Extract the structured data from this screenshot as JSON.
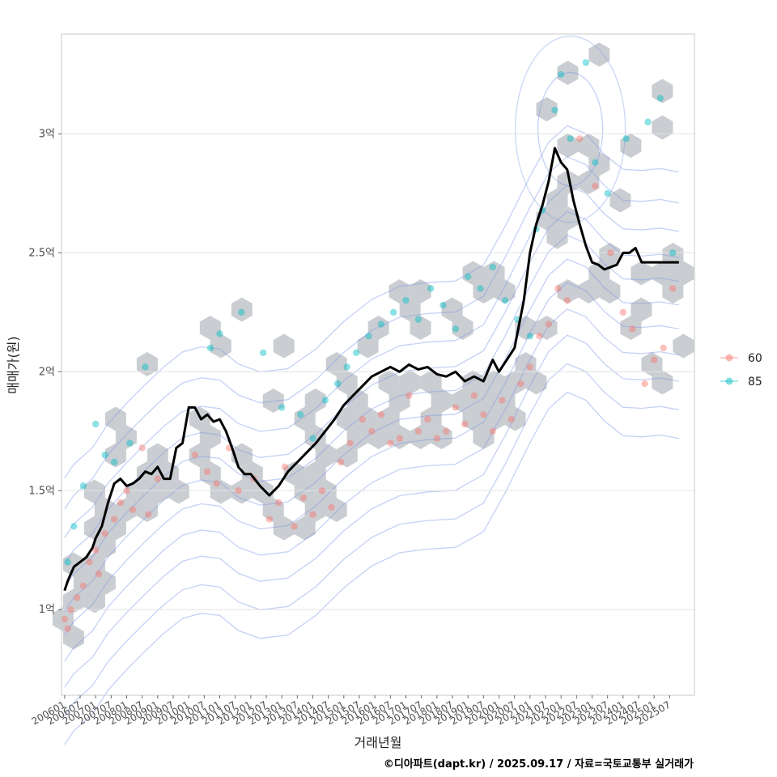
{
  "chart_data": {
    "type": "scatter",
    "title": "",
    "xlabel": "거래년월",
    "ylabel": "매매가(원)",
    "caption": "©디아파트(dapt.kr) / 2025.09.17 / 자료=국토교통부 실거래가",
    "x_range": [
      2005.9,
      2026.3
    ],
    "ylim": [
      0.64,
      3.42
    ],
    "y_ticks": [
      {
        "value": 1.0,
        "label": "1억"
      },
      {
        "value": 1.5,
        "label": "1.5억"
      },
      {
        "value": 2.0,
        "label": "2억"
      },
      {
        "value": 2.5,
        "label": "2.5억"
      },
      {
        "value": 3.0,
        "label": "3억"
      }
    ],
    "x_tick_labels": [
      "200601",
      "200607",
      "200701",
      "200707",
      "200801",
      "200807",
      "200901",
      "200907",
      "201001",
      "201007",
      "201101",
      "201107",
      "201201",
      "201207",
      "201301",
      "201307",
      "201401",
      "201407",
      "201501",
      "201507",
      "201601",
      "201607",
      "201701",
      "201707",
      "201801",
      "201807",
      "201901",
      "201907",
      "202001",
      "202007",
      "202101",
      "202107",
      "202201",
      "202207",
      "202301",
      "202307",
      "202401",
      "202407",
      "202501",
      "202507"
    ],
    "legend": {
      "position": "right",
      "entries": [
        {
          "name": "60",
          "color": "#F8766D"
        },
        {
          "name": "85",
          "color": "#00BFC4"
        }
      ]
    },
    "colors": {
      "hexbin": "#9ea4ab",
      "density": "#7f9ae8",
      "trend": "#000000",
      "grid": "#e3e3e3"
    },
    "trend": {
      "name": "median price",
      "x": [
        2006.0,
        2006.1,
        2006.2,
        2006.3,
        2006.5,
        2006.7,
        2006.9,
        2007.0,
        2007.2,
        2007.4,
        2007.6,
        2007.8,
        2008.0,
        2008.2,
        2008.4,
        2008.6,
        2008.8,
        2009.0,
        2009.2,
        2009.4,
        2009.6,
        2009.8,
        2010.0,
        2010.2,
        2010.4,
        2010.6,
        2010.8,
        2011.0,
        2011.2,
        2011.4,
        2011.6,
        2011.8,
        2012.0,
        2012.3,
        2012.6,
        2012.9,
        2013.2,
        2013.5,
        2013.8,
        2014.1,
        2014.4,
        2014.7,
        2015.0,
        2015.3,
        2015.6,
        2015.9,
        2016.2,
        2016.5,
        2016.8,
        2017.1,
        2017.4,
        2017.7,
        2018.0,
        2018.3,
        2018.6,
        2018.9,
        2019.2,
        2019.5,
        2019.8,
        2020.0,
        2020.2,
        2020.5,
        2020.8,
        2021.0,
        2021.2,
        2021.4,
        2021.6,
        2021.8,
        2022.0,
        2022.2,
        2022.4,
        2022.6,
        2022.8,
        2023.0,
        2023.2,
        2023.4,
        2023.6,
        2023.8,
        2024.0,
        2024.2,
        2024.4,
        2024.6,
        2024.8,
        2025.0,
        2025.2,
        2025.4,
        2025.6,
        2025.8
      ],
      "values": [
        1.08,
        1.12,
        1.15,
        1.18,
        1.2,
        1.22,
        1.26,
        1.3,
        1.35,
        1.45,
        1.53,
        1.55,
        1.52,
        1.53,
        1.55,
        1.58,
        1.57,
        1.6,
        1.55,
        1.55,
        1.68,
        1.7,
        1.85,
        1.85,
        1.8,
        1.82,
        1.79,
        1.8,
        1.75,
        1.68,
        1.6,
        1.57,
        1.57,
        1.52,
        1.48,
        1.52,
        1.58,
        1.62,
        1.66,
        1.7,
        1.75,
        1.8,
        1.86,
        1.9,
        1.94,
        1.98,
        2.0,
        2.02,
        2.0,
        2.03,
        2.01,
        2.02,
        1.99,
        1.98,
        2.0,
        1.96,
        1.98,
        1.96,
        2.05,
        2.0,
        2.04,
        2.1,
        2.3,
        2.5,
        2.62,
        2.7,
        2.8,
        2.94,
        2.88,
        2.85,
        2.72,
        2.62,
        2.53,
        2.46,
        2.45,
        2.43,
        2.44,
        2.45,
        2.5,
        2.5,
        2.52,
        2.46,
        2.46,
        2.46,
        2.46,
        2.46,
        2.46,
        2.46
      ]
    },
    "series": [
      {
        "name": "60",
        "x": [
          2006.0,
          2006.1,
          2006.2,
          2006.4,
          2006.6,
          2006.8,
          2007.0,
          2007.1,
          2007.3,
          2007.6,
          2007.8,
          2008.0,
          2008.2,
          2008.5,
          2008.7,
          2009.0,
          2010.2,
          2010.6,
          2010.9,
          2011.3,
          2011.6,
          2012.1,
          2012.6,
          2012.9,
          2013.1,
          2013.4,
          2013.7,
          2014.0,
          2014.3,
          2014.6,
          2014.9,
          2015.2,
          2015.6,
          2015.9,
          2016.2,
          2016.5,
          2016.8,
          2017.1,
          2017.4,
          2017.7,
          2018.0,
          2018.3,
          2018.6,
          2018.9,
          2019.2,
          2019.5,
          2019.8,
          2020.1,
          2020.4,
          2020.7,
          2021.0,
          2021.3,
          2021.6,
          2021.9,
          2022.2,
          2022.6,
          2023.1,
          2023.6,
          2024.0,
          2024.3,
          2024.7,
          2025.0,
          2025.3,
          2025.6
        ],
        "y": [
          0.96,
          0.92,
          1.0,
          1.05,
          1.1,
          1.2,
          1.25,
          1.15,
          1.32,
          1.38,
          1.45,
          1.5,
          1.42,
          1.68,
          1.4,
          1.55,
          1.65,
          1.58,
          1.53,
          1.68,
          1.5,
          1.55,
          1.38,
          1.45,
          1.6,
          1.35,
          1.47,
          1.4,
          1.5,
          1.43,
          1.62,
          1.7,
          1.8,
          1.75,
          1.82,
          1.7,
          1.72,
          1.9,
          1.75,
          1.8,
          1.72,
          1.75,
          1.85,
          1.78,
          1.9,
          1.82,
          1.75,
          1.88,
          1.8,
          1.95,
          2.02,
          2.15,
          2.2,
          2.35,
          2.3,
          2.98,
          2.78,
          2.5,
          2.25,
          2.18,
          1.95,
          2.05,
          2.1,
          2.35
        ]
      },
      {
        "name": "85",
        "x": [
          2006.1,
          2006.3,
          2006.6,
          2007.0,
          2007.3,
          2007.6,
          2008.1,
          2008.6,
          2010.7,
          2011.0,
          2011.7,
          2012.4,
          2013.0,
          2013.6,
          2014.0,
          2014.4,
          2014.8,
          2015.1,
          2015.4,
          2015.8,
          2016.2,
          2016.6,
          2017.0,
          2017.4,
          2017.8,
          2018.2,
          2018.6,
          2019.0,
          2019.4,
          2019.8,
          2020.2,
          2020.6,
          2021.0,
          2021.2,
          2021.4,
          2021.8,
          2022.0,
          2022.3,
          2022.8,
          2023.1,
          2023.5,
          2024.1,
          2024.8,
          2025.2,
          2025.6
        ],
        "y": [
          1.2,
          1.35,
          1.52,
          1.78,
          1.65,
          1.62,
          1.7,
          2.02,
          2.1,
          2.16,
          2.25,
          2.08,
          1.85,
          1.82,
          1.72,
          1.88,
          1.95,
          2.02,
          2.08,
          2.15,
          2.2,
          2.25,
          2.3,
          2.22,
          2.35,
          2.28,
          2.18,
          2.4,
          2.35,
          2.44,
          2.3,
          2.22,
          2.15,
          2.6,
          2.68,
          3.1,
          3.25,
          2.98,
          3.3,
          2.88,
          2.75,
          2.98,
          3.05,
          3.15,
          2.5
        ]
      }
    ]
  }
}
